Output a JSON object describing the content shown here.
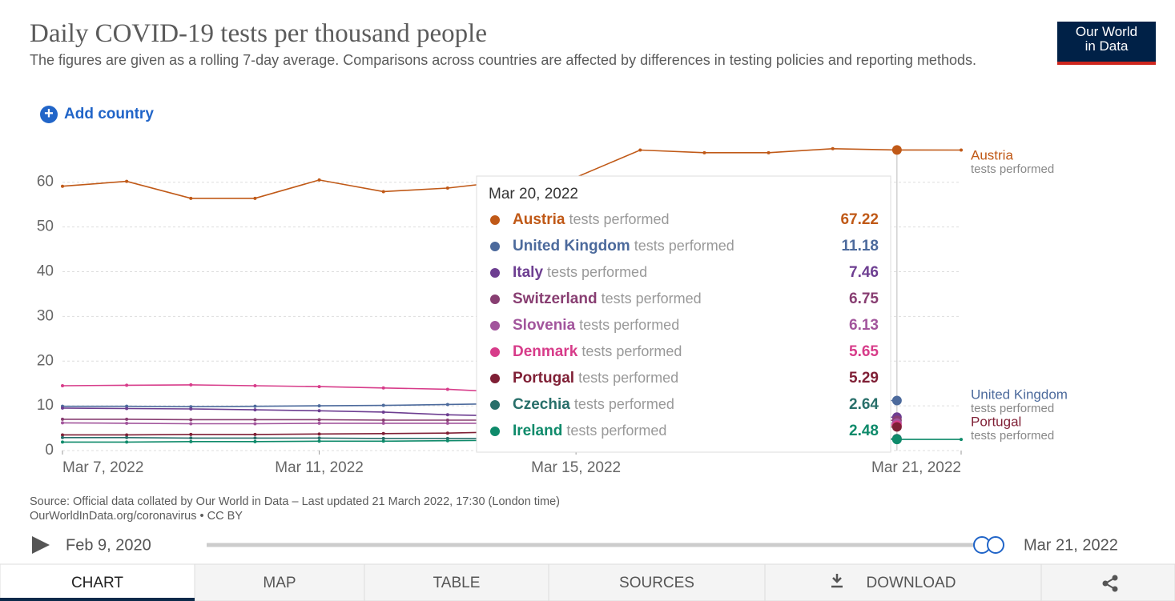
{
  "header": {
    "logo": [
      "Our World",
      "in Data"
    ],
    "add_country": "Add country"
  },
  "chart_data": {
    "type": "line",
    "title": "Daily COVID-19 tests per thousand people",
    "subtitle": "The figures are given as a rolling 7-day average. Comparisons across countries are affected by differences in testing policies and reporting methods.",
    "metric_label": "tests performed",
    "tooltip_title": "Mar 20, 2022",
    "x": [
      "2022-03-07",
      "2022-03-08",
      "2022-03-09",
      "2022-03-10",
      "2022-03-11",
      "2022-03-12",
      "2022-03-13",
      "2022-03-14",
      "2022-03-15",
      "2022-03-16",
      "2022-03-17",
      "2022-03-18",
      "2022-03-19",
      "2022-03-20",
      "2022-03-21"
    ],
    "xlim": [
      "2022-03-07",
      "2022-03-21"
    ],
    "xticks": [
      {
        "value": "2022-03-07",
        "label": "Mar 7, 2022"
      },
      {
        "value": "2022-03-11",
        "label": "Mar 11, 2022"
      },
      {
        "value": "2022-03-15",
        "label": "Mar 15, 2022"
      },
      {
        "value": "2022-03-21",
        "label": "Mar 21, 2022"
      }
    ],
    "ylim": [
      0,
      68
    ],
    "yticks": [
      0,
      10,
      20,
      30,
      40,
      50,
      60
    ],
    "grid": true,
    "series": [
      {
        "name": "Austria",
        "color": "#c05917",
        "values": [
          59.1,
          60.2,
          56.4,
          56.4,
          60.5,
          57.9,
          58.7,
          60.3,
          61.1,
          67.2,
          66.6,
          66.6,
          67.5,
          67.22,
          67.2
        ]
      },
      {
        "name": "United Kingdom",
        "color": "#4c6a9c",
        "values": [
          9.9,
          9.9,
          9.8,
          9.9,
          10.0,
          10.1,
          10.3,
          10.5,
          10.7,
          10.9,
          11.0,
          11.1,
          11.2,
          11.18,
          null
        ]
      },
      {
        "name": "Italy",
        "color": "#6d3e91",
        "values": [
          9.5,
          9.4,
          9.3,
          9.1,
          8.9,
          8.6,
          8.0,
          7.7,
          7.6,
          7.5,
          7.5,
          7.5,
          7.4,
          7.46,
          null
        ]
      },
      {
        "name": "Switzerland",
        "color": "#883e72",
        "values": [
          7.0,
          7.0,
          6.9,
          6.9,
          6.9,
          6.8,
          6.8,
          6.8,
          6.8,
          6.7,
          6.7,
          6.8,
          6.8,
          6.75,
          null
        ]
      },
      {
        "name": "Slovenia",
        "color": "#a2559c",
        "values": [
          6.2,
          6.1,
          6.0,
          6.0,
          6.1,
          6.1,
          6.1,
          6.1,
          6.2,
          6.2,
          6.1,
          6.1,
          6.1,
          6.13,
          null
        ]
      },
      {
        "name": "Denmark",
        "color": "#d73c8a",
        "values": [
          14.5,
          14.6,
          14.7,
          14.5,
          14.3,
          14.0,
          13.7,
          13.0,
          12.0,
          10.5,
          9.0,
          7.8,
          6.5,
          5.65,
          null
        ]
      },
      {
        "name": "Portugal",
        "color": "#7f1f35",
        "values": [
          3.5,
          3.5,
          3.6,
          3.6,
          3.7,
          3.8,
          3.9,
          4.2,
          4.5,
          4.8,
          5.0,
          5.1,
          5.2,
          5.29,
          null
        ]
      },
      {
        "name": "Czechia",
        "color": "#286f6a",
        "values": [
          2.9,
          2.9,
          2.8,
          2.8,
          2.8,
          2.7,
          2.7,
          2.7,
          2.7,
          2.7,
          2.6,
          2.6,
          2.6,
          2.64,
          null
        ]
      },
      {
        "name": "Ireland",
        "color": "#0e8a6a",
        "values": [
          1.9,
          1.9,
          2.0,
          2.0,
          2.1,
          2.1,
          2.2,
          2.3,
          2.3,
          2.4,
          2.4,
          2.4,
          2.5,
          2.48,
          2.48
        ]
      }
    ]
  },
  "footer": {
    "source": "Source: Official data collated by Our World in Data – Last updated 21 March 2022, 17:30 (London time)",
    "license": "OurWorldInData.org/coronavirus • CC BY",
    "timeline_start": "Feb 9, 2020",
    "timeline_end": "Mar 21, 2022",
    "tabs": [
      "CHART",
      "MAP",
      "TABLE",
      "SOURCES",
      "DOWNLOAD"
    ]
  }
}
